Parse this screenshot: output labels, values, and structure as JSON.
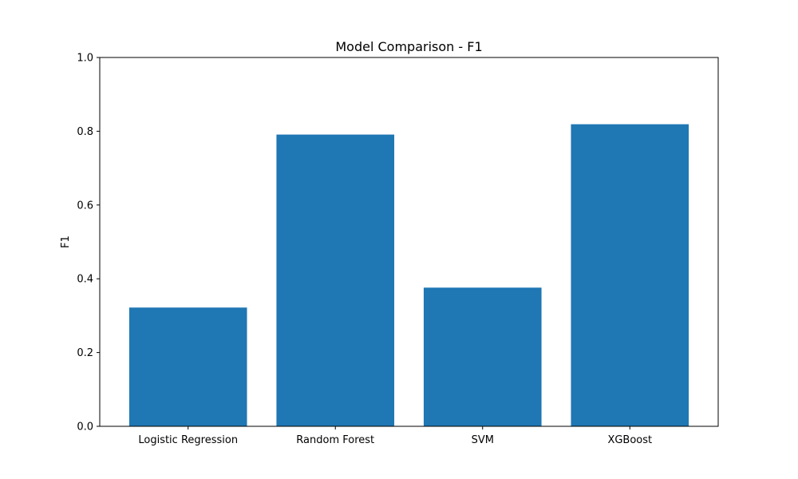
{
  "chart_data": {
    "type": "bar",
    "title": "Model Comparison - F1",
    "xlabel": "",
    "ylabel": "F1",
    "categories": [
      "Logistic Regression",
      "Random Forest",
      "SVM",
      "XGBoost"
    ],
    "values": [
      0.322,
      0.791,
      0.376,
      0.819
    ],
    "ylim": [
      0,
      1
    ],
    "yticks": [
      0.0,
      0.2,
      0.4,
      0.6,
      0.8,
      1.0
    ],
    "ytick_labels": [
      "0.0",
      "0.2",
      "0.4",
      "0.6",
      "0.8",
      "1.0"
    ],
    "grid": false,
    "bar_color": "#1f77b4"
  }
}
